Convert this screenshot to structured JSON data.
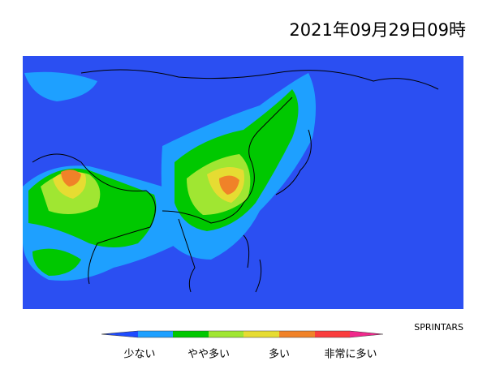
{
  "title": "2021年09月29日09時",
  "credit": "SPRINTARS",
  "legend": {
    "labels": [
      "少ない",
      "やや多い",
      "多い",
      "非常に多い"
    ]
  }
}
